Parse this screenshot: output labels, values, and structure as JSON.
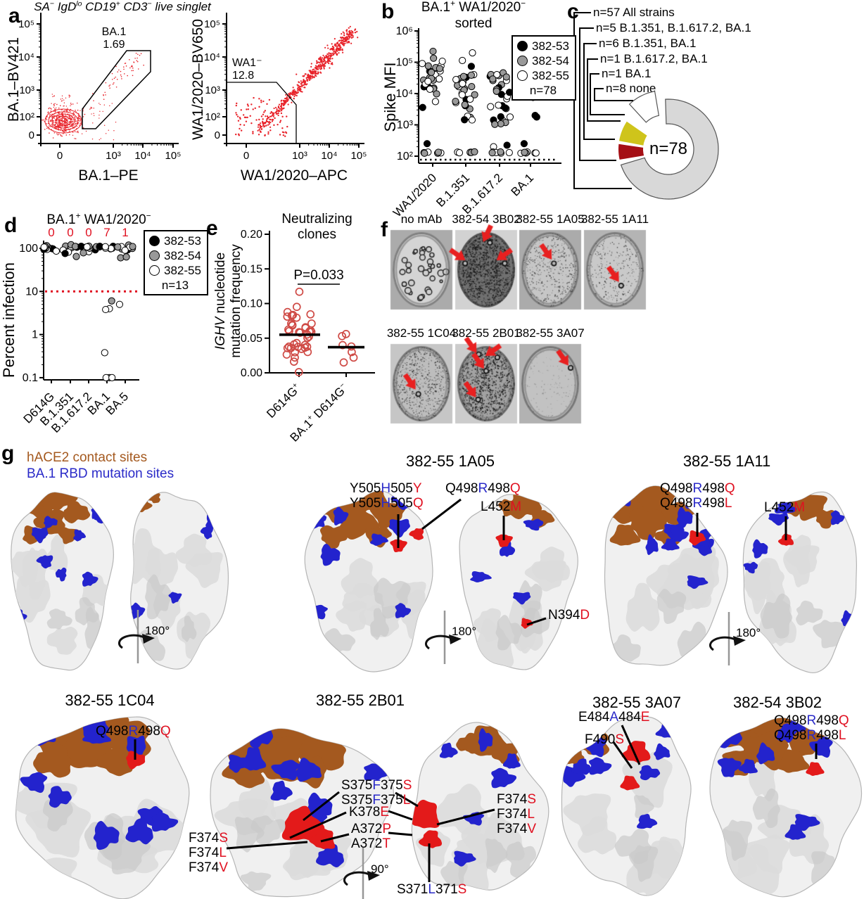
{
  "colors": {
    "accent_red": "#e01020",
    "annotation_blue": "#2a2ac8",
    "flow_red": "#e8232a",
    "hace2_brown": "#a4591f",
    "site_blue": "#2323cd",
    "epitope_red": "#e31a1a",
    "marker_black": "#000000",
    "marker_gray": "#999999",
    "marker_white": "#ffffff",
    "neut_circle_red": "#cf4a45"
  },
  "panel_a": {
    "label": "a",
    "title_parts": [
      {
        "t": "SA"
      },
      {
        "t": "−",
        "sup": 1
      },
      {
        "t": " IgD"
      },
      {
        "t": "lo",
        "sup": 1
      },
      {
        "t": " CD19"
      },
      {
        "t": "+",
        "sup": 1
      },
      {
        "t": " CD3"
      },
      {
        "t": "−",
        "sup": 1
      },
      {
        "t": " live singlet"
      }
    ],
    "plot1": {
      "ylabel": "BA.1–BV421",
      "xlabel": "BA.1–PE",
      "yticks": [
        "10⁵",
        "10⁴",
        "10³",
        "10²",
        "0"
      ],
      "xticks": [
        "0",
        "10³",
        "10⁴",
        "10⁵"
      ],
      "gate_name": "BA.1",
      "gate_value": "1.69"
    },
    "plot2": {
      "ylabel": "WA1/2020–BV650",
      "xlabel": "WA1/2020–APC",
      "yticks": [
        "10⁵",
        "10⁴",
        "10³",
        "10²",
        "0"
      ],
      "xticks": [
        "0",
        "10³",
        "10⁴",
        "10⁵"
      ],
      "gate_name": "WA1⁻",
      "gate_value": "12.8"
    }
  },
  "panel_b": {
    "label": "b",
    "title_parts": [
      {
        "t": "BA.1"
      },
      {
        "t": "+",
        "sup": 1
      },
      {
        "t": " WA1/2020"
      },
      {
        "t": "−",
        "sup": 1
      }
    ],
    "title_line2": "sorted",
    "ylabel": "Spike MFI",
    "yticks": [
      "10⁶",
      "10⁵",
      "10⁴",
      "10³",
      "10²"
    ],
    "categories": [
      "WA1/2020",
      "B.1.351",
      "B.1.617.2",
      "BA.1"
    ],
    "legend": {
      "items": [
        {
          "label": "382-53",
          "fill": "#000000"
        },
        {
          "label": "382-54",
          "fill": "#999999"
        },
        {
          "label": "382-55",
          "fill": "#ffffff"
        }
      ],
      "n_label": "n=78"
    },
    "chart": {
      "type": "scatter",
      "yscale": "log",
      "ylim": [
        "1e2",
        "1e6"
      ]
    }
  },
  "panel_c": {
    "label": "c",
    "center_label": "n=78",
    "slices": [
      {
        "label": "n=57 All strains",
        "value": 57,
        "color": "#d8d8d8"
      },
      {
        "label": "n=5 B.1.351, B.1.617.2, BA.1",
        "value": 5,
        "color": "#a50f15"
      },
      {
        "label": "n=6 B.1.351, BA.1",
        "value": 6,
        "color": "#cfc41b"
      },
      {
        "label": "n=1 B.1.617.2, BA.1",
        "value": 1,
        "color": "#33a02c"
      },
      {
        "label": "n=1 BA.1",
        "value": 1,
        "color": "#1f1fbf"
      },
      {
        "label": "n=8 none",
        "value": 8,
        "color": "#ffffff"
      }
    ],
    "chart": {
      "type": "pie",
      "total": 78
    }
  },
  "panel_d": {
    "label": "d",
    "title_parts": [
      {
        "t": "BA.1"
      },
      {
        "t": "+",
        "sup": 1
      },
      {
        "t": " WA1/2020"
      },
      {
        "t": "−",
        "sup": 1
      }
    ],
    "ylabel": "Percent infection",
    "yticks": [
      "100",
      "10",
      "1",
      "0.1"
    ],
    "neutralized_counts": [
      "0",
      "0",
      "0",
      "7",
      "1"
    ],
    "categories": [
      "D614G",
      "B.1.351",
      "B.1.617.2",
      "BA.1",
      "BA.5"
    ],
    "threshold_value": "10",
    "legend": {
      "items": [
        {
          "label": "382-53",
          "fill": "#000000"
        },
        {
          "label": "382-54",
          "fill": "#999999"
        },
        {
          "label": "382-55",
          "fill": "#ffffff"
        }
      ],
      "n_label": "n=13"
    },
    "chart": {
      "type": "scatter",
      "yscale": "log",
      "ylim": [
        0.1,
        150
      ]
    }
  },
  "panel_e": {
    "label": "e",
    "title_lines": [
      "Neutralizing",
      "clones"
    ],
    "ylabel_line1_parts": [
      {
        "t": "IGHV",
        "i": 1
      },
      {
        "t": " nucleotide"
      }
    ],
    "ylabel_line2": "mutation frequency",
    "yticks": [
      "0.20",
      "0.15",
      "0.10",
      "0.05",
      "0.00"
    ],
    "p_value": "P=0.033",
    "categories_parts": [
      [
        {
          "t": "D614G"
        },
        {
          "t": "+",
          "sup": 1
        }
      ],
      [
        {
          "t": "BA.1"
        },
        {
          "t": "+",
          "sup": 1
        },
        {
          "t": " D614G"
        },
        {
          "t": "−",
          "sup": 1
        }
      ]
    ],
    "medians": [
      0.055,
      0.037
    ],
    "chart": {
      "type": "scatter",
      "ylim": [
        0,
        0.2
      ]
    }
  },
  "panel_f": {
    "label": "f",
    "well_labels": [
      "no mAb",
      "382-54 3B02",
      "382-55 1A05",
      "382-55 1A11",
      "382-55 1C04",
      "382-55 2B01",
      "382-55 3A07"
    ]
  },
  "panel_g": {
    "label": "g",
    "legend": [
      {
        "text": "hACE2 contact sites",
        "color": "#a4591f"
      },
      {
        "text": "BA.1 RBD mutation sites",
        "color": "#2a2ac8"
      }
    ],
    "titles": {
      "p1a05": "382-55 1A05",
      "p1a11": "382-55 1A11",
      "p1c04": "382-55 1C04",
      "p2b01": "382-55 2B01",
      "p3a07": "382-55 3A07",
      "p3b02": "382-54 3B02"
    },
    "rotations": {
      "deg180": "180°",
      "deg90": "90°"
    },
    "annotations": {
      "y505": [
        [
          {
            "t": "Y505"
          },
          {
            "t": "H",
            "c": "b"
          },
          {
            "t": "505"
          },
          {
            "t": "Y",
            "c": "r"
          }
        ],
        [
          {
            "t": "Y505"
          },
          {
            "t": "H",
            "c": "b"
          },
          {
            "t": "505"
          },
          {
            "t": "Q",
            "c": "r"
          }
        ]
      ],
      "q498_1a05": [
        [
          {
            "t": "Q498"
          },
          {
            "t": "R",
            "c": "b"
          },
          {
            "t": "498"
          },
          {
            "t": "Q",
            "c": "r"
          }
        ]
      ],
      "l452_1a05": [
        [
          {
            "t": "L452"
          },
          {
            "t": "M",
            "c": "r"
          }
        ]
      ],
      "n394": [
        [
          {
            "t": "N394"
          },
          {
            "t": "D",
            "c": "r"
          }
        ]
      ],
      "q498_1a11": [
        [
          {
            "t": "Q498"
          },
          {
            "t": "R",
            "c": "b"
          },
          {
            "t": "498"
          },
          {
            "t": "Q",
            "c": "r"
          }
        ],
        [
          {
            "t": "Q498"
          },
          {
            "t": "R",
            "c": "b"
          },
          {
            "t": "498"
          },
          {
            "t": "L",
            "c": "r"
          }
        ]
      ],
      "l452_1a11": [
        [
          {
            "t": "L452"
          },
          {
            "t": "M",
            "c": "r"
          }
        ]
      ],
      "q498_1c04": [
        [
          {
            "t": "Q498"
          },
          {
            "t": "R",
            "c": "b"
          },
          {
            "t": "498"
          },
          {
            "t": "Q",
            "c": "r"
          }
        ]
      ],
      "s375": [
        [
          {
            "t": "S375"
          },
          {
            "t": "F",
            "c": "b"
          },
          {
            "t": "375"
          },
          {
            "t": "S",
            "c": "r"
          }
        ],
        [
          {
            "t": "S375"
          },
          {
            "t": "F",
            "c": "b"
          },
          {
            "t": "375"
          },
          {
            "t": "L",
            "c": "r"
          }
        ]
      ],
      "k378": [
        [
          {
            "t": "K378"
          },
          {
            "t": "E",
            "c": "r"
          }
        ]
      ],
      "a372": [
        [
          {
            "t": "A372"
          },
          {
            "t": "P",
            "c": "r"
          }
        ],
        [
          {
            "t": "A372"
          },
          {
            "t": "T",
            "c": "r"
          }
        ]
      ],
      "f374_left": [
        [
          {
            "t": "F374"
          },
          {
            "t": "S",
            "c": "r"
          }
        ],
        [
          {
            "t": "F374"
          },
          {
            "t": "L",
            "c": "r"
          }
        ],
        [
          {
            "t": "F374"
          },
          {
            "t": "V",
            "c": "r"
          }
        ]
      ],
      "f374_right": [
        [
          {
            "t": "F374"
          },
          {
            "t": "S",
            "c": "r"
          }
        ],
        [
          {
            "t": "F374"
          },
          {
            "t": "L",
            "c": "r"
          }
        ],
        [
          {
            "t": "F374"
          },
          {
            "t": "V",
            "c": "r"
          }
        ]
      ],
      "s371": [
        [
          {
            "t": "S371"
          },
          {
            "t": "L",
            "c": "b"
          },
          {
            "t": "371"
          },
          {
            "t": "S",
            "c": "r"
          }
        ]
      ],
      "e484": [
        [
          {
            "t": "E484"
          },
          {
            "t": "A",
            "c": "b"
          },
          {
            "t": "484"
          },
          {
            "t": "E",
            "c": "r"
          }
        ]
      ],
      "f490": [
        [
          {
            "t": "F490"
          },
          {
            "t": "S",
            "c": "r"
          }
        ]
      ],
      "q498_3b02": [
        [
          {
            "t": "Q498"
          },
          {
            "t": "R",
            "c": "b"
          },
          {
            "t": "498"
          },
          {
            "t": "Q",
            "c": "r"
          }
        ],
        [
          {
            "t": "Q498"
          },
          {
            "t": "R",
            "c": "b"
          },
          {
            "t": "498"
          },
          {
            "t": "L",
            "c": "r"
          }
        ]
      ]
    }
  }
}
